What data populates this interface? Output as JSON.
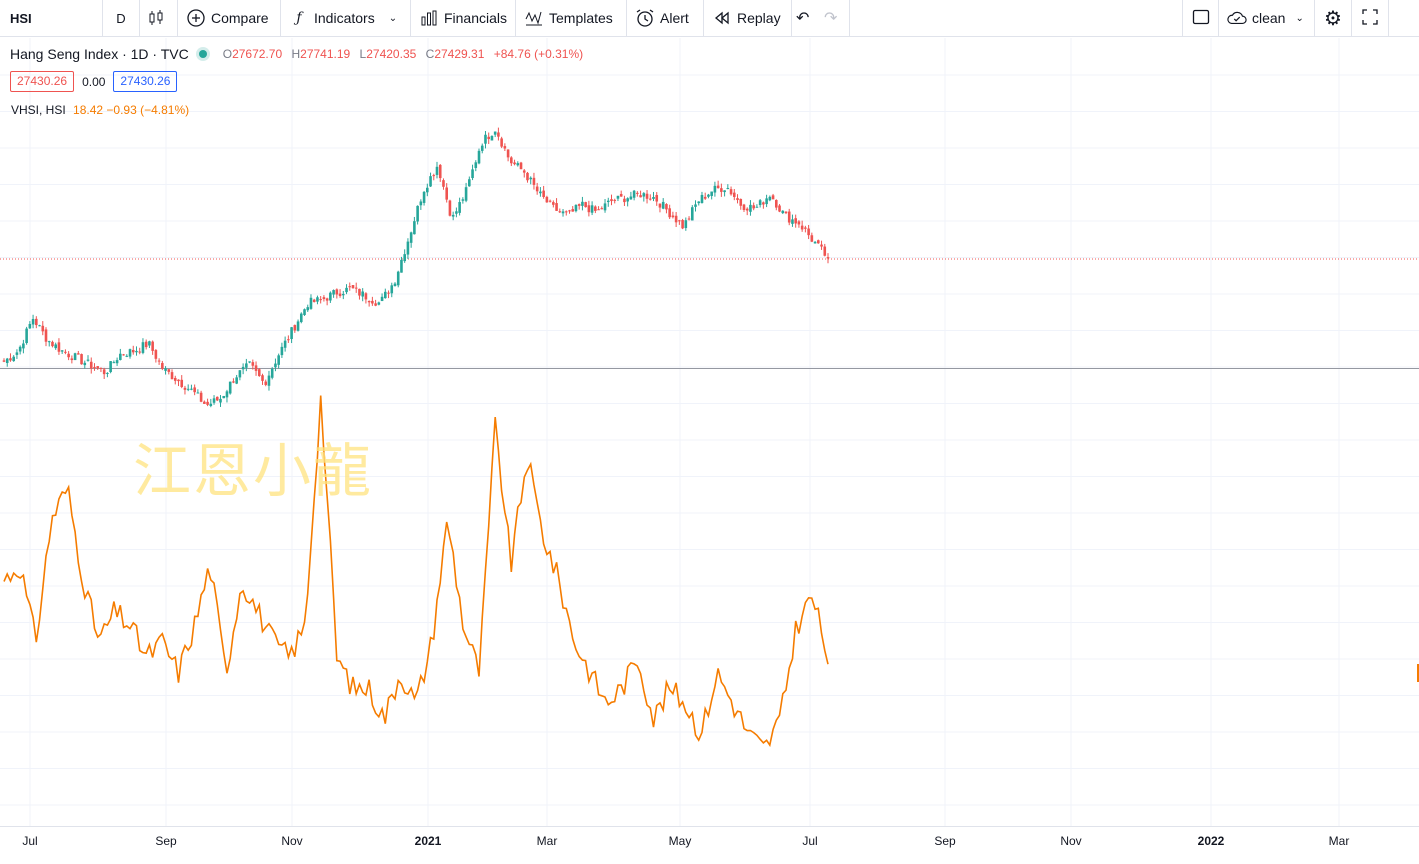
{
  "toolbar": {
    "symbol": "HSI",
    "interval": "D",
    "compare": "Compare",
    "indicators": "Indicators",
    "financials": "Financials",
    "templates": "Templates",
    "alert": "Alert",
    "replay": "Replay",
    "layout_name": "clean",
    "icons": [
      "candles-icon",
      "plus-circle-icon",
      "fx-icon",
      "bars-icon",
      "templates-icon",
      "alarm-icon",
      "replay-icon",
      "undo-icon",
      "redo-icon",
      "square-icon",
      "cloud-icon",
      "gear-icon",
      "fullscreen-icon"
    ]
  },
  "legend": {
    "title": "Hang Seng Index · 1D · TVC",
    "ohlc": {
      "open_label": "O",
      "open": "27672.70",
      "high_label": "H",
      "high": "27741.19",
      "low_label": "L",
      "low": "27420.35",
      "close_label": "C",
      "close": "27429.31",
      "change": "+84.76 (+0.31%)"
    },
    "bid": "27430.26",
    "spread": "0.00",
    "ask": "27430.26",
    "vhsi_label": "VHSI, HSI",
    "vhsi_value": "18.42 −0.93 (−4.81%)"
  },
  "watermark": "江恩小龍",
  "xaxis": {
    "ticks": [
      {
        "label": "Jul",
        "bold": false
      },
      {
        "label": "Sep",
        "bold": false
      },
      {
        "label": "Nov",
        "bold": false
      },
      {
        "label": "2021",
        "bold": true
      },
      {
        "label": "Mar",
        "bold": false
      },
      {
        "label": "May",
        "bold": false
      },
      {
        "label": "Jul",
        "bold": false
      },
      {
        "label": "Sep",
        "bold": false
      },
      {
        "label": "Nov",
        "bold": false
      },
      {
        "label": "2022",
        "bold": true
      },
      {
        "label": "Mar",
        "bold": false
      }
    ]
  },
  "colors": {
    "up": "#26a69a",
    "down": "#ef5350",
    "vhsi": "#f57c00",
    "last_price_line": "#ef5350"
  },
  "chart_data": {
    "type": "line",
    "series": [
      {
        "name": "Hang Seng Index",
        "kind": "candlestick",
        "x_range": [
          "2020-06-22",
          "2021-07-09"
        ],
        "close_path": [
          24600,
          24900,
          25800,
          25200,
          24900,
          24700,
          24500,
          24300,
          24800,
          24900,
          25100,
          24400,
          24100,
          23800,
          23400,
          23600,
          24200,
          24500,
          24000,
          24800,
          25500,
          26200,
          26300,
          26500,
          26600,
          26400,
          26200,
          26800,
          28000,
          29300,
          30000,
          28500,
          29300,
          30600,
          31000,
          30100,
          29800,
          29200,
          28800,
          28600,
          28900,
          28700,
          29000,
          29100,
          29200,
          29100,
          28700,
          28300,
          29000,
          29300,
          29400,
          28900,
          28800,
          29200,
          28600,
          28400,
          27900,
          27429
        ]
      },
      {
        "name": "VHSI",
        "kind": "line",
        "values": [
          24,
          25,
          20,
          28,
          30,
          24,
          20,
          22,
          21,
          19,
          20,
          18,
          21,
          25,
          18,
          24,
          22,
          20,
          19,
          21,
          36,
          19,
          17,
          17,
          15,
          18,
          16,
          20,
          28,
          21,
          18,
          34,
          25,
          32,
          27,
          24,
          20,
          18,
          16,
          17,
          19,
          15,
          17,
          16,
          14,
          18,
          16,
          14,
          13,
          15,
          21,
          23,
          19
        ]
      }
    ]
  }
}
